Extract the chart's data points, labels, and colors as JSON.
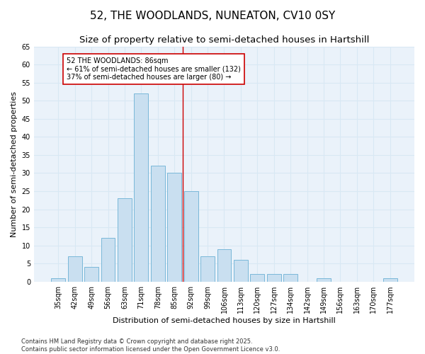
{
  "title1": "52, THE WOODLANDS, NUNEATON, CV10 0SY",
  "title2": "Size of property relative to semi-detached houses in Hartshill",
  "xlabel": "Distribution of semi-detached houses by size in Hartshill",
  "ylabel": "Number of semi-detached properties",
  "bar_labels": [
    "35sqm",
    "42sqm",
    "49sqm",
    "56sqm",
    "63sqm",
    "71sqm",
    "78sqm",
    "85sqm",
    "92sqm",
    "99sqm",
    "106sqm",
    "113sqm",
    "120sqm",
    "127sqm",
    "134sqm",
    "142sqm",
    "149sqm",
    "156sqm",
    "163sqm",
    "170sqm",
    "177sqm"
  ],
  "bar_values": [
    1,
    7,
    4,
    12,
    23,
    52,
    32,
    30,
    25,
    7,
    9,
    6,
    2,
    2,
    2,
    0,
    1,
    0,
    0,
    0,
    1
  ],
  "bar_color": "#c9dff0",
  "bar_edge_color": "#7ab8d9",
  "grid_color": "#d8e8f4",
  "background_color": "#eaf2fa",
  "annotation_text": "52 THE WOODLANDS: 86sqm\n← 61% of semi-detached houses are smaller (132)\n37% of semi-detached houses are larger (80) →",
  "vline_x": 7.5,
  "vline_color": "#cc0000",
  "ylim": [
    0,
    65
  ],
  "yticks": [
    0,
    5,
    10,
    15,
    20,
    25,
    30,
    35,
    40,
    45,
    50,
    55,
    60,
    65
  ],
  "footnote": "Contains HM Land Registry data © Crown copyright and database right 2025.\nContains public sector information licensed under the Open Government Licence v3.0.",
  "title_fontsize": 11,
  "subtitle_fontsize": 9.5,
  "tick_fontsize": 7,
  "ylabel_fontsize": 8,
  "xlabel_fontsize": 8,
  "annot_fontsize": 7,
  "footnote_fontsize": 6
}
